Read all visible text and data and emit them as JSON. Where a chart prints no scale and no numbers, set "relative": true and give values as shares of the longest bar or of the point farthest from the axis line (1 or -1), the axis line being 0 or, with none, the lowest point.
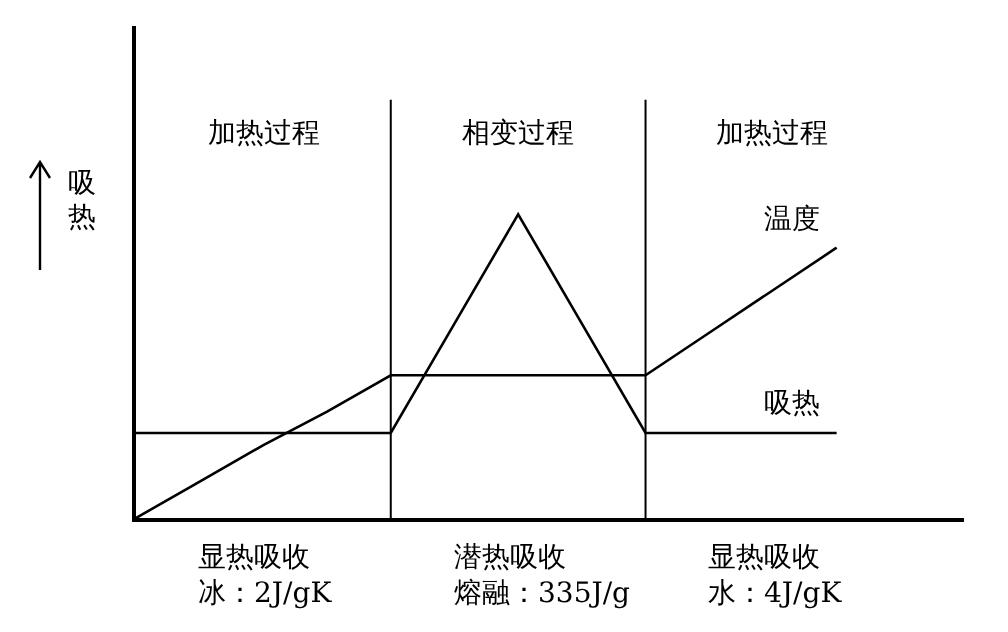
{
  "chart_data": {
    "type": "line",
    "relative": true,
    "ylabel": "吸热",
    "legend": false,
    "grid": false,
    "marker": "none",
    "line_style": "solid",
    "categories": [
      null,
      null,
      null,
      null,
      null,
      null,
      null,
      null,
      null,
      null,
      null,
      null,
      null,
      null
    ],
    "series": [
      {
        "name": "温度",
        "color": "#000000",
        "values": [
          0,
          0.12,
          0.24,
          0.35,
          0.47,
          0.47,
          0.47,
          0.47,
          0.47,
          0.61,
          0.75,
          0.89,
          null,
          null
        ]
      },
      {
        "name": "吸热",
        "color": "#000000",
        "values": [
          0.28,
          0.28,
          0.28,
          0.28,
          0.28,
          0.64,
          1,
          0.64,
          0.28,
          0.28,
          0.28,
          0.28,
          null,
          null
        ]
      }
    ],
    "annotations": [
      "加热过程",
      "相变过程",
      "加热过程",
      "显热吸收",
      "潜热吸收",
      "显热吸收",
      "冰：2J/gK",
      "熔融：335J/g",
      "水：4J/gK"
    ]
  }
}
